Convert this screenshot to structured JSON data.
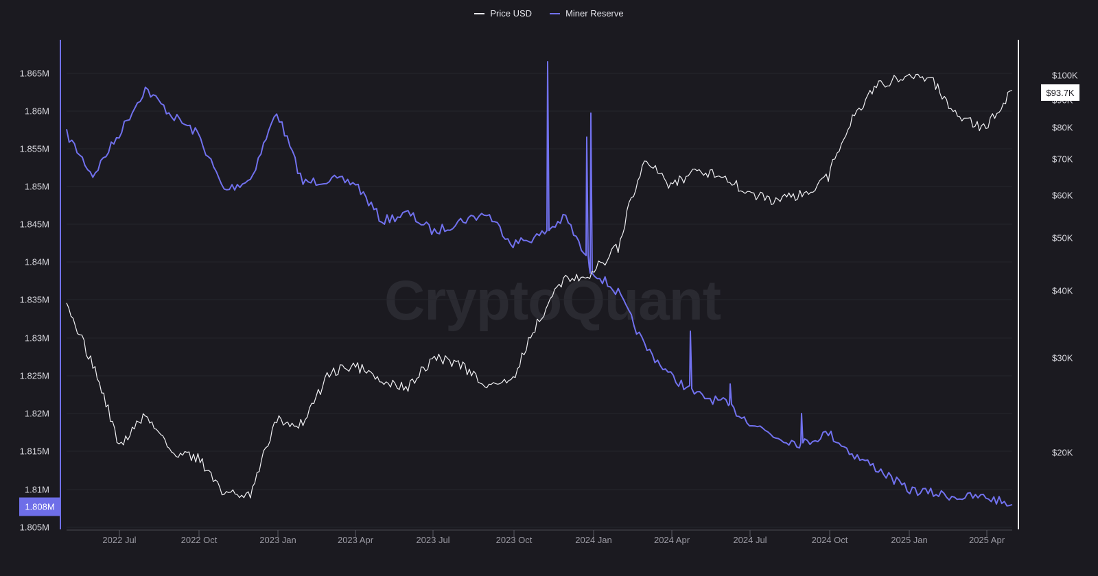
{
  "legend": [
    {
      "label": "Price USD",
      "color": "#e8e8ec"
    },
    {
      "label": "Miner Reserve",
      "color": "#7171ee"
    }
  ],
  "watermark": "CryptoQuant",
  "left_axis": {
    "ticks": [
      "1.865M",
      "1.86M",
      "1.855M",
      "1.85M",
      "1.845M",
      "1.84M",
      "1.835M",
      "1.83M",
      "1.825M",
      "1.82M",
      "1.815M",
      "1.81M",
      "1.805M"
    ],
    "current_badge": "1.808M"
  },
  "right_axis": {
    "ticks": [
      "$100K",
      "$90K",
      "$80K",
      "$70K",
      "$60K",
      "$50K",
      "$40K",
      "$30K",
      "$20K"
    ],
    "current_badge": "$93.7K"
  },
  "x_axis": {
    "ticks": [
      "2022 Jul",
      "2022 Oct",
      "2023 Jan",
      "2023 Apr",
      "2023 Jul",
      "2023 Oct",
      "2024 Jan",
      "2024 Apr",
      "2024 Jul",
      "2024 Oct",
      "2025 Jan",
      "2025 Apr"
    ]
  },
  "chart_data": {
    "type": "line",
    "title": "",
    "legend_position": "top",
    "grid": true,
    "x": [
      "2022-05",
      "2022-06",
      "2022-07",
      "2022-08",
      "2022-09",
      "2022-10",
      "2022-11",
      "2022-12",
      "2023-01",
      "2023-02",
      "2023-03",
      "2023-04",
      "2023-05",
      "2023-06",
      "2023-07",
      "2023-08",
      "2023-09",
      "2023-10",
      "2023-11",
      "2023-12",
      "2024-01",
      "2024-02",
      "2024-03",
      "2024-04",
      "2024-05",
      "2024-06",
      "2024-07",
      "2024-08",
      "2024-09",
      "2024-10",
      "2024-11",
      "2024-12",
      "2025-01",
      "2025-02",
      "2025-03",
      "2025-04",
      "2025-05"
    ],
    "series": [
      {
        "name": "Miner Reserve",
        "axis": "left",
        "unit": "BTC",
        "color": "#7171ee",
        "values": [
          1857000,
          1851500,
          1857000,
          1863000,
          1859500,
          1857000,
          1849500,
          1851000,
          1860000,
          1850500,
          1851000,
          1850500,
          1845500,
          1846500,
          1844000,
          1845500,
          1846500,
          1842500,
          1843500,
          1846000,
          1839000,
          1836000,
          1829000,
          1825000,
          1822500,
          1821500,
          1819000,
          1817000,
          1816000,
          1817500,
          1814500,
          1812500,
          1810000,
          1809500,
          1809000,
          1809000,
          1808000
        ]
      },
      {
        "name": "Price USD",
        "axis": "right",
        "unit": "USD",
        "color": "#e8e8ec",
        "scale": "log",
        "values": [
          37000,
          29000,
          20500,
          23500,
          20000,
          19500,
          16800,
          16800,
          23000,
          22500,
          28000,
          29000,
          27000,
          26500,
          30000,
          29000,
          26500,
          27500,
          35500,
          42000,
          43000,
          48000,
          70000,
          62000,
          67000,
          65000,
          60000,
          58500,
          60000,
          65000,
          85000,
          97000,
          99000,
          97000,
          83000,
          80000,
          93700
        ]
      }
    ],
    "ylim_left": [
      1805000,
      1866500
    ],
    "ylim_right_log": [
      14000,
      108000
    ],
    "ylabel_left": "Miner Reserve",
    "ylabel_right": "Price USD",
    "xlabel": ""
  }
}
